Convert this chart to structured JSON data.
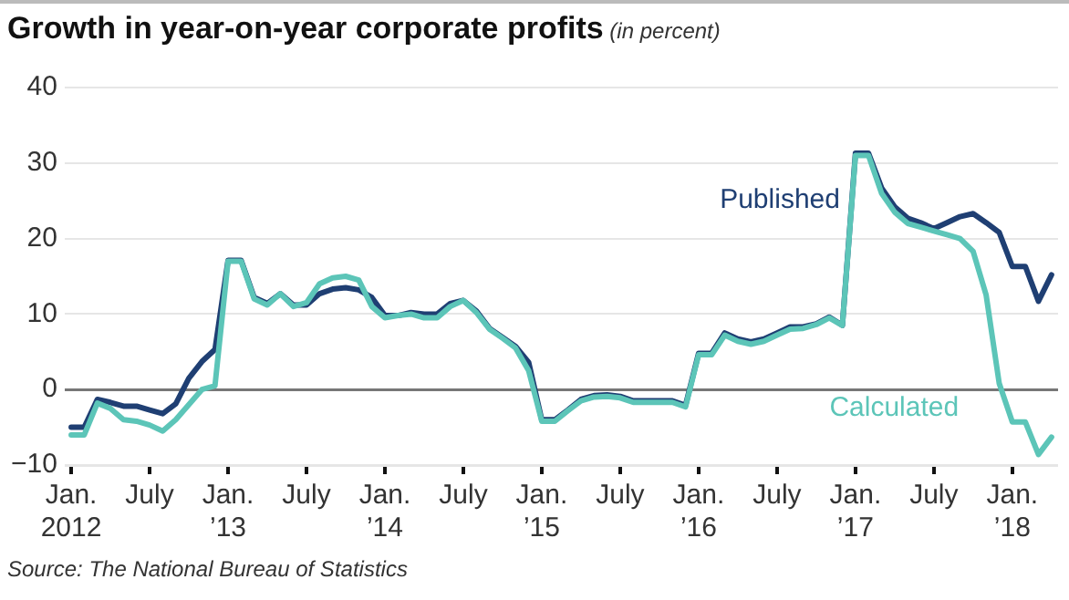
{
  "chart_data": {
    "type": "line",
    "title": "Growth in year-on-year corporate profits",
    "subtitle": "(in percent)",
    "categories": [
      "Jan.\n2012",
      null,
      null,
      null,
      null,
      null,
      "July",
      null,
      null,
      null,
      null,
      null,
      "Jan.\n’13",
      null,
      null,
      null,
      null,
      null,
      "July",
      null,
      null,
      null,
      null,
      null,
      "Jan.\n’14",
      null,
      null,
      null,
      null,
      null,
      "July",
      null,
      null,
      null,
      null,
      null,
      "Jan.\n’15",
      null,
      null,
      null,
      null,
      null,
      "July",
      null,
      null,
      null,
      null,
      null,
      "Jan.\n’16",
      null,
      null,
      null,
      null,
      null,
      "July",
      null,
      null,
      null,
      null,
      null,
      "Jan.\n’17",
      null,
      null,
      null,
      null,
      null,
      "July",
      null,
      null,
      null,
      null,
      null,
      "Jan.\n’18",
      null,
      null,
      null
    ],
    "series": [
      {
        "name": "Published",
        "color": "#1f3f73",
        "values": [
          -5,
          -5,
          -1.3,
          -1.7,
          -2.2,
          -2.2,
          -2.7,
          -3.2,
          -1.9,
          1.5,
          3.7,
          5.3,
          17.1,
          17.1,
          12.2,
          11.4,
          12.7,
          11.2,
          11.2,
          12.7,
          13.3,
          13.5,
          13.2,
          12.2,
          9.8,
          9.8,
          10.2,
          10,
          10,
          11.4,
          11.8,
          10.4,
          8.1,
          6.9,
          5.7,
          3.6,
          -4,
          -4,
          -2.7,
          -1.3,
          -0.8,
          -0.7,
          -0.9,
          -1.5,
          -1.5,
          -1.5,
          -1.5,
          -2.1,
          4.8,
          4.8,
          7.5,
          6.7,
          6.3,
          6.7,
          7.5,
          8.3,
          8.3,
          8.7,
          9.6,
          8.5,
          31.3,
          31.3,
          26.7,
          24.2,
          22.7,
          22.1,
          21.3,
          22.1,
          22.9,
          23.3,
          22.1,
          20.8,
          16.3,
          16.3,
          11.7,
          15.2
        ]
      },
      {
        "name": "Calculated",
        "color": "#5cc5b8",
        "values": [
          -6,
          -6,
          -1.8,
          -2.5,
          -4,
          -4.2,
          -4.7,
          -5.5,
          -4,
          -2,
          0,
          0.5,
          17,
          17,
          12,
          11.2,
          12.7,
          11,
          11.5,
          14,
          14.8,
          15,
          14.5,
          11,
          9.5,
          9.8,
          10,
          9.5,
          9.5,
          11,
          11.8,
          10.2,
          8,
          6.8,
          5.5,
          2.5,
          -4.2,
          -4.2,
          -2.8,
          -1.5,
          -1,
          -0.9,
          -1.1,
          -1.7,
          -1.7,
          -1.7,
          -1.7,
          -2.3,
          4.6,
          4.6,
          7.2,
          6.4,
          6,
          6.4,
          7.2,
          8,
          8.1,
          8.6,
          9.5,
          8.5,
          31,
          31,
          26,
          23.5,
          22,
          21.5,
          21,
          20.5,
          20,
          18.3,
          12.5,
          0.8,
          -4.3,
          -4.3,
          -8.6,
          -6.3
        ]
      }
    ],
    "ylim": [
      -10,
      40
    ],
    "yticks": [
      -10,
      0,
      10,
      20,
      30,
      40
    ],
    "grid": "y",
    "legend": false,
    "marker": "none",
    "line_style": "solid",
    "annotations": [
      "Source: The National Bureau of Statistics"
    ]
  }
}
